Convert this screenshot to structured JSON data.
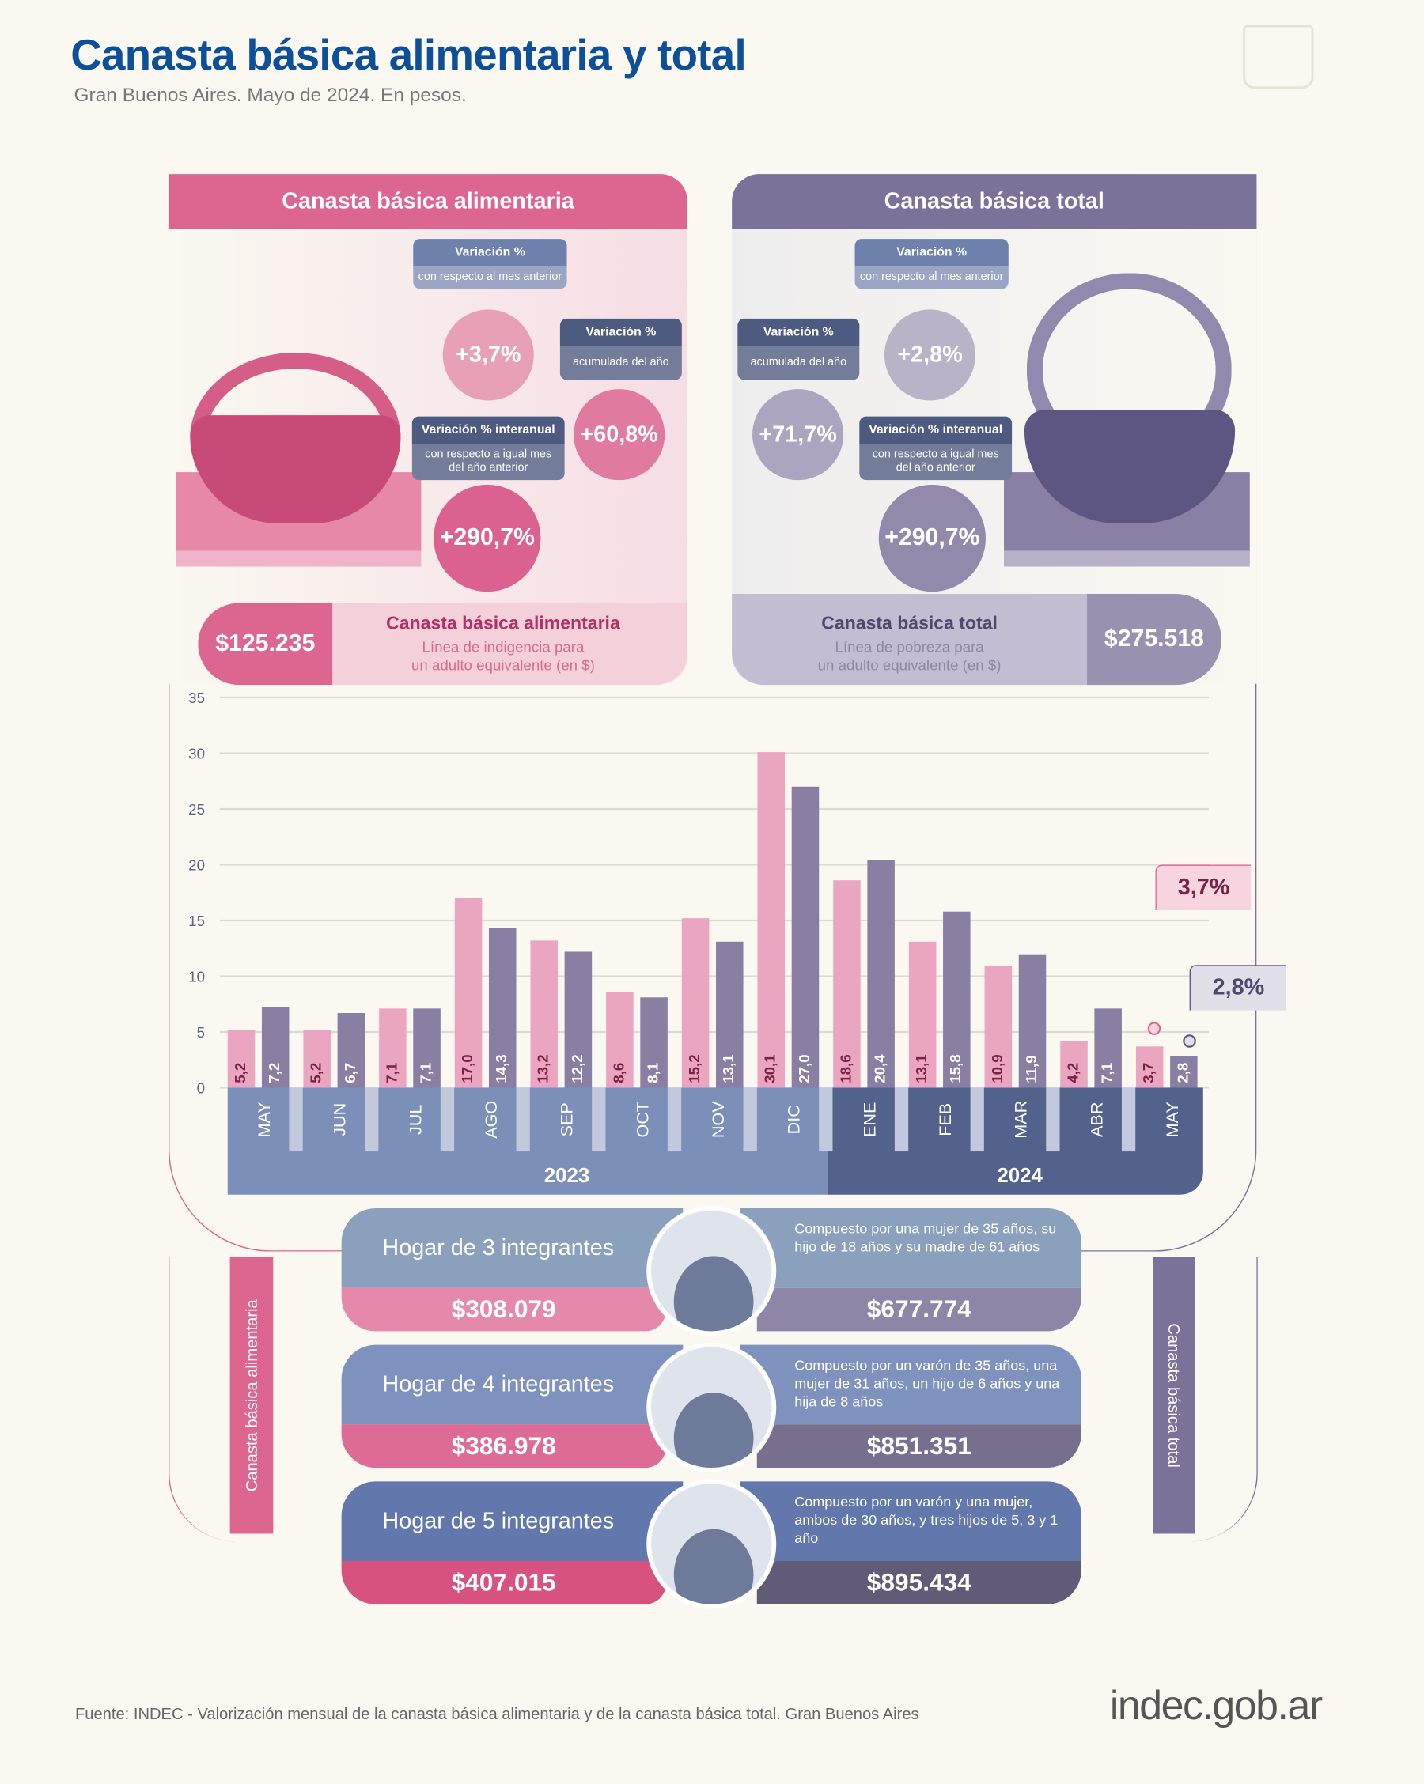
{
  "header": {
    "title": "Canasta básica alimentaria y total",
    "subtitle": "Gran Buenos Aires. Mayo de 2024. En pesos."
  },
  "colors": {
    "title": "#0d4f98",
    "cba": "#dd6690",
    "cbt": "#7b7299",
    "year2023": "#7b8fb8",
    "year2024": "#52628c"
  },
  "cba": {
    "header": "Canasta básica alimentaria",
    "monthly": {
      "title": "Variación %",
      "sub": "con respecto al mes anterior",
      "value": "+3,7%"
    },
    "ytd": {
      "title": "Variación %",
      "sub": "acumulada del año",
      "value": "+60,8%"
    },
    "yoy": {
      "title": "Variación % interanual",
      "sub": "con respecto a igual mes del año anterior",
      "value": "+290,7%"
    },
    "amount": "$125.235",
    "name": "Canasta básica alimentaria",
    "desc1": "Línea de indigencia para",
    "desc2": "un adulto equivalente (en $)"
  },
  "cbt": {
    "header": "Canasta básica total",
    "monthly": {
      "title": "Variación %",
      "sub": "con respecto al mes anterior",
      "value": "+2,8%"
    },
    "ytd": {
      "title": "Variación %",
      "sub": "acumulada del año",
      "value": "+71,7%"
    },
    "yoy": {
      "title": "Variación % interanual",
      "sub": "con respecto a igual mes del año anterior",
      "value": "+290,7%"
    },
    "amount": "$275.518",
    "name": "Canasta básica total",
    "desc1": "Línea de pobreza para",
    "desc2": "un adulto equivalente (en $)"
  },
  "chart_data": {
    "type": "bar",
    "ylim": [
      0,
      35
    ],
    "yticks": [
      "0",
      "5",
      "10",
      "15",
      "20",
      "25",
      "30",
      "35"
    ],
    "categories": [
      "MAY",
      "JUN",
      "JUL",
      "AGO",
      "SEP",
      "OCT",
      "NOV",
      "DIC",
      "ENE",
      "FEB",
      "MAR",
      "ABR",
      "MAY"
    ],
    "years": [
      "2023",
      "2024"
    ],
    "series": [
      {
        "values": [
          5.2,
          5.2,
          7.1,
          17.0,
          13.2,
          8.6,
          15.2,
          30.1,
          18.6,
          13.1,
          10.9,
          4.2,
          3.7
        ],
        "labels": [
          "5,2",
          "5,2",
          "7,1",
          "17,0",
          "13,2",
          "8,6",
          "15,2",
          "30,1",
          "18,6",
          "13,1",
          "10,9",
          "4,2",
          "3,7"
        ],
        "color": "#eaa6c0"
      },
      {
        "values": [
          7.2,
          6.7,
          7.1,
          14.3,
          12.2,
          8.1,
          13.1,
          27.0,
          20.4,
          15.8,
          11.9,
          7.1,
          2.8
        ],
        "labels": [
          "7,2",
          "6,7",
          "7,1",
          "14,3",
          "12,2",
          "8,1",
          "13,1",
          "27,0",
          "20,4",
          "15,8",
          "11,9",
          "7,1",
          "2,8"
        ],
        "color": "#8a7ea3"
      }
    ],
    "callouts": [
      "3,7%",
      "2,8%"
    ],
    "grid": true
  },
  "side": {
    "left": "Canasta básica alimentaria",
    "right": "Canasta básica total"
  },
  "households": [
    {
      "label": "Hogar de 3 integrantes",
      "cba": "$308.079",
      "cbt": "$677.774",
      "desc": "Compuesto por una mujer de 35 años, su hijo de 18 años y su madre de 61 años"
    },
    {
      "label": "Hogar de 4 integrantes",
      "cba": "$386.978",
      "cbt": "$851.351",
      "desc": "Compuesto por un varón de 35 años, una mujer de 31 años, un hijo de 6 años y una hija de 8 años"
    },
    {
      "label": "Hogar de 5 integrantes",
      "cba": "$407.015",
      "cbt": "$895.434",
      "desc": "Compuesto por un varón y una mujer, ambos de 30 años, y tres hijos de 5, 3 y 1 año"
    }
  ],
  "footer": {
    "source": "Fuente: INDEC - Valorización mensual de la canasta básica alimentaria y de la canasta básica total. Gran Buenos Aires",
    "logo": "indec.gob.ar"
  }
}
